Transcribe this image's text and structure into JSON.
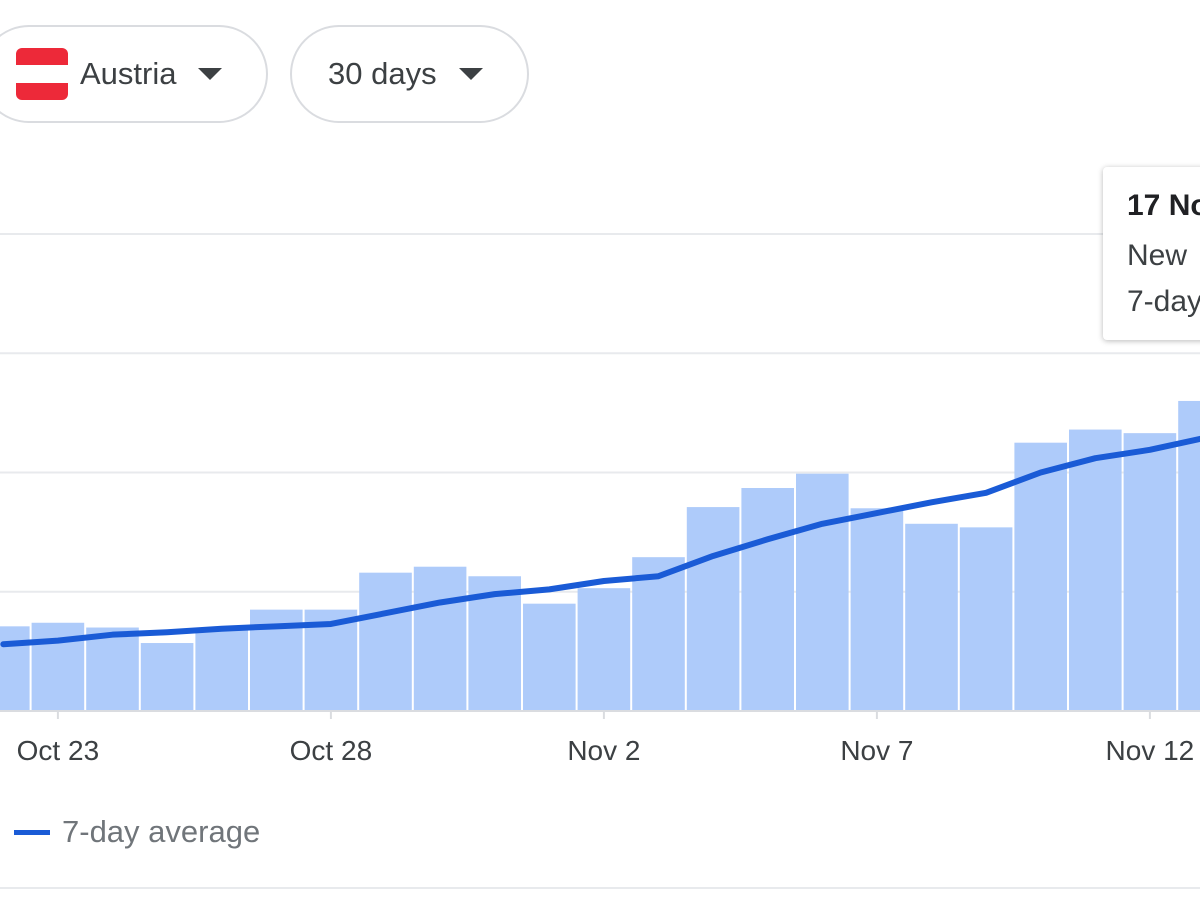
{
  "filters": {
    "country": {
      "label": "Austria",
      "flag_colors": [
        "#ed2939",
        "#ffffff",
        "#ed2939"
      ]
    },
    "range": {
      "label": "30 days"
    },
    "dropdown_icon": "arrow-drop-down-icon"
  },
  "tooltip": {
    "date": "17 No",
    "line1": "New",
    "line2": "7-day"
  },
  "legend": {
    "label": "7-day average",
    "color": "#1a5bd6"
  },
  "colors": {
    "bar": "#aecbfa",
    "line": "#1a5bd6",
    "grid": "#e8eaed",
    "axis": "#dadce0",
    "tick_text": "#3c4043"
  },
  "chart_data": {
    "type": "bar",
    "x_tick_labels": [
      "Oct 23",
      "Oct 28",
      "Nov 2",
      "Nov 7",
      "Nov 12"
    ],
    "categories": [
      "Oct 22",
      "Oct 23",
      "Oct 24",
      "Oct 25",
      "Oct 26",
      "Oct 27",
      "Oct 28",
      "Oct 29",
      "Oct 30",
      "Oct 31",
      "Nov 1",
      "Nov 2",
      "Nov 3",
      "Nov 4",
      "Nov 5",
      "Nov 6",
      "Nov 7",
      "Nov 8",
      "Nov 9",
      "Nov 10",
      "Nov 11",
      "Nov 12",
      "Nov 13"
    ],
    "series": [
      {
        "name": "",
        "kind": "bar",
        "values": [
          0.71,
          0.74,
          0.7,
          0.57,
          0.68,
          0.85,
          0.85,
          1.16,
          1.21,
          1.13,
          0.9,
          1.03,
          1.29,
          1.71,
          1.87,
          1.99,
          1.7,
          1.57,
          1.54,
          2.25,
          2.36,
          2.33,
          2.6
        ]
      },
      {
        "name": "7-day average",
        "kind": "line",
        "values": [
          0.56,
          0.59,
          0.64,
          0.66,
          0.69,
          0.71,
          0.73,
          0.82,
          0.91,
          0.98,
          1.02,
          1.09,
          1.13,
          1.3,
          1.44,
          1.57,
          1.66,
          1.75,
          1.83,
          2.0,
          2.12,
          2.19,
          2.29
        ]
      }
    ],
    "ylim": [
      0,
      4
    ],
    "grid": true,
    "legend_position": "bottom-left"
  }
}
